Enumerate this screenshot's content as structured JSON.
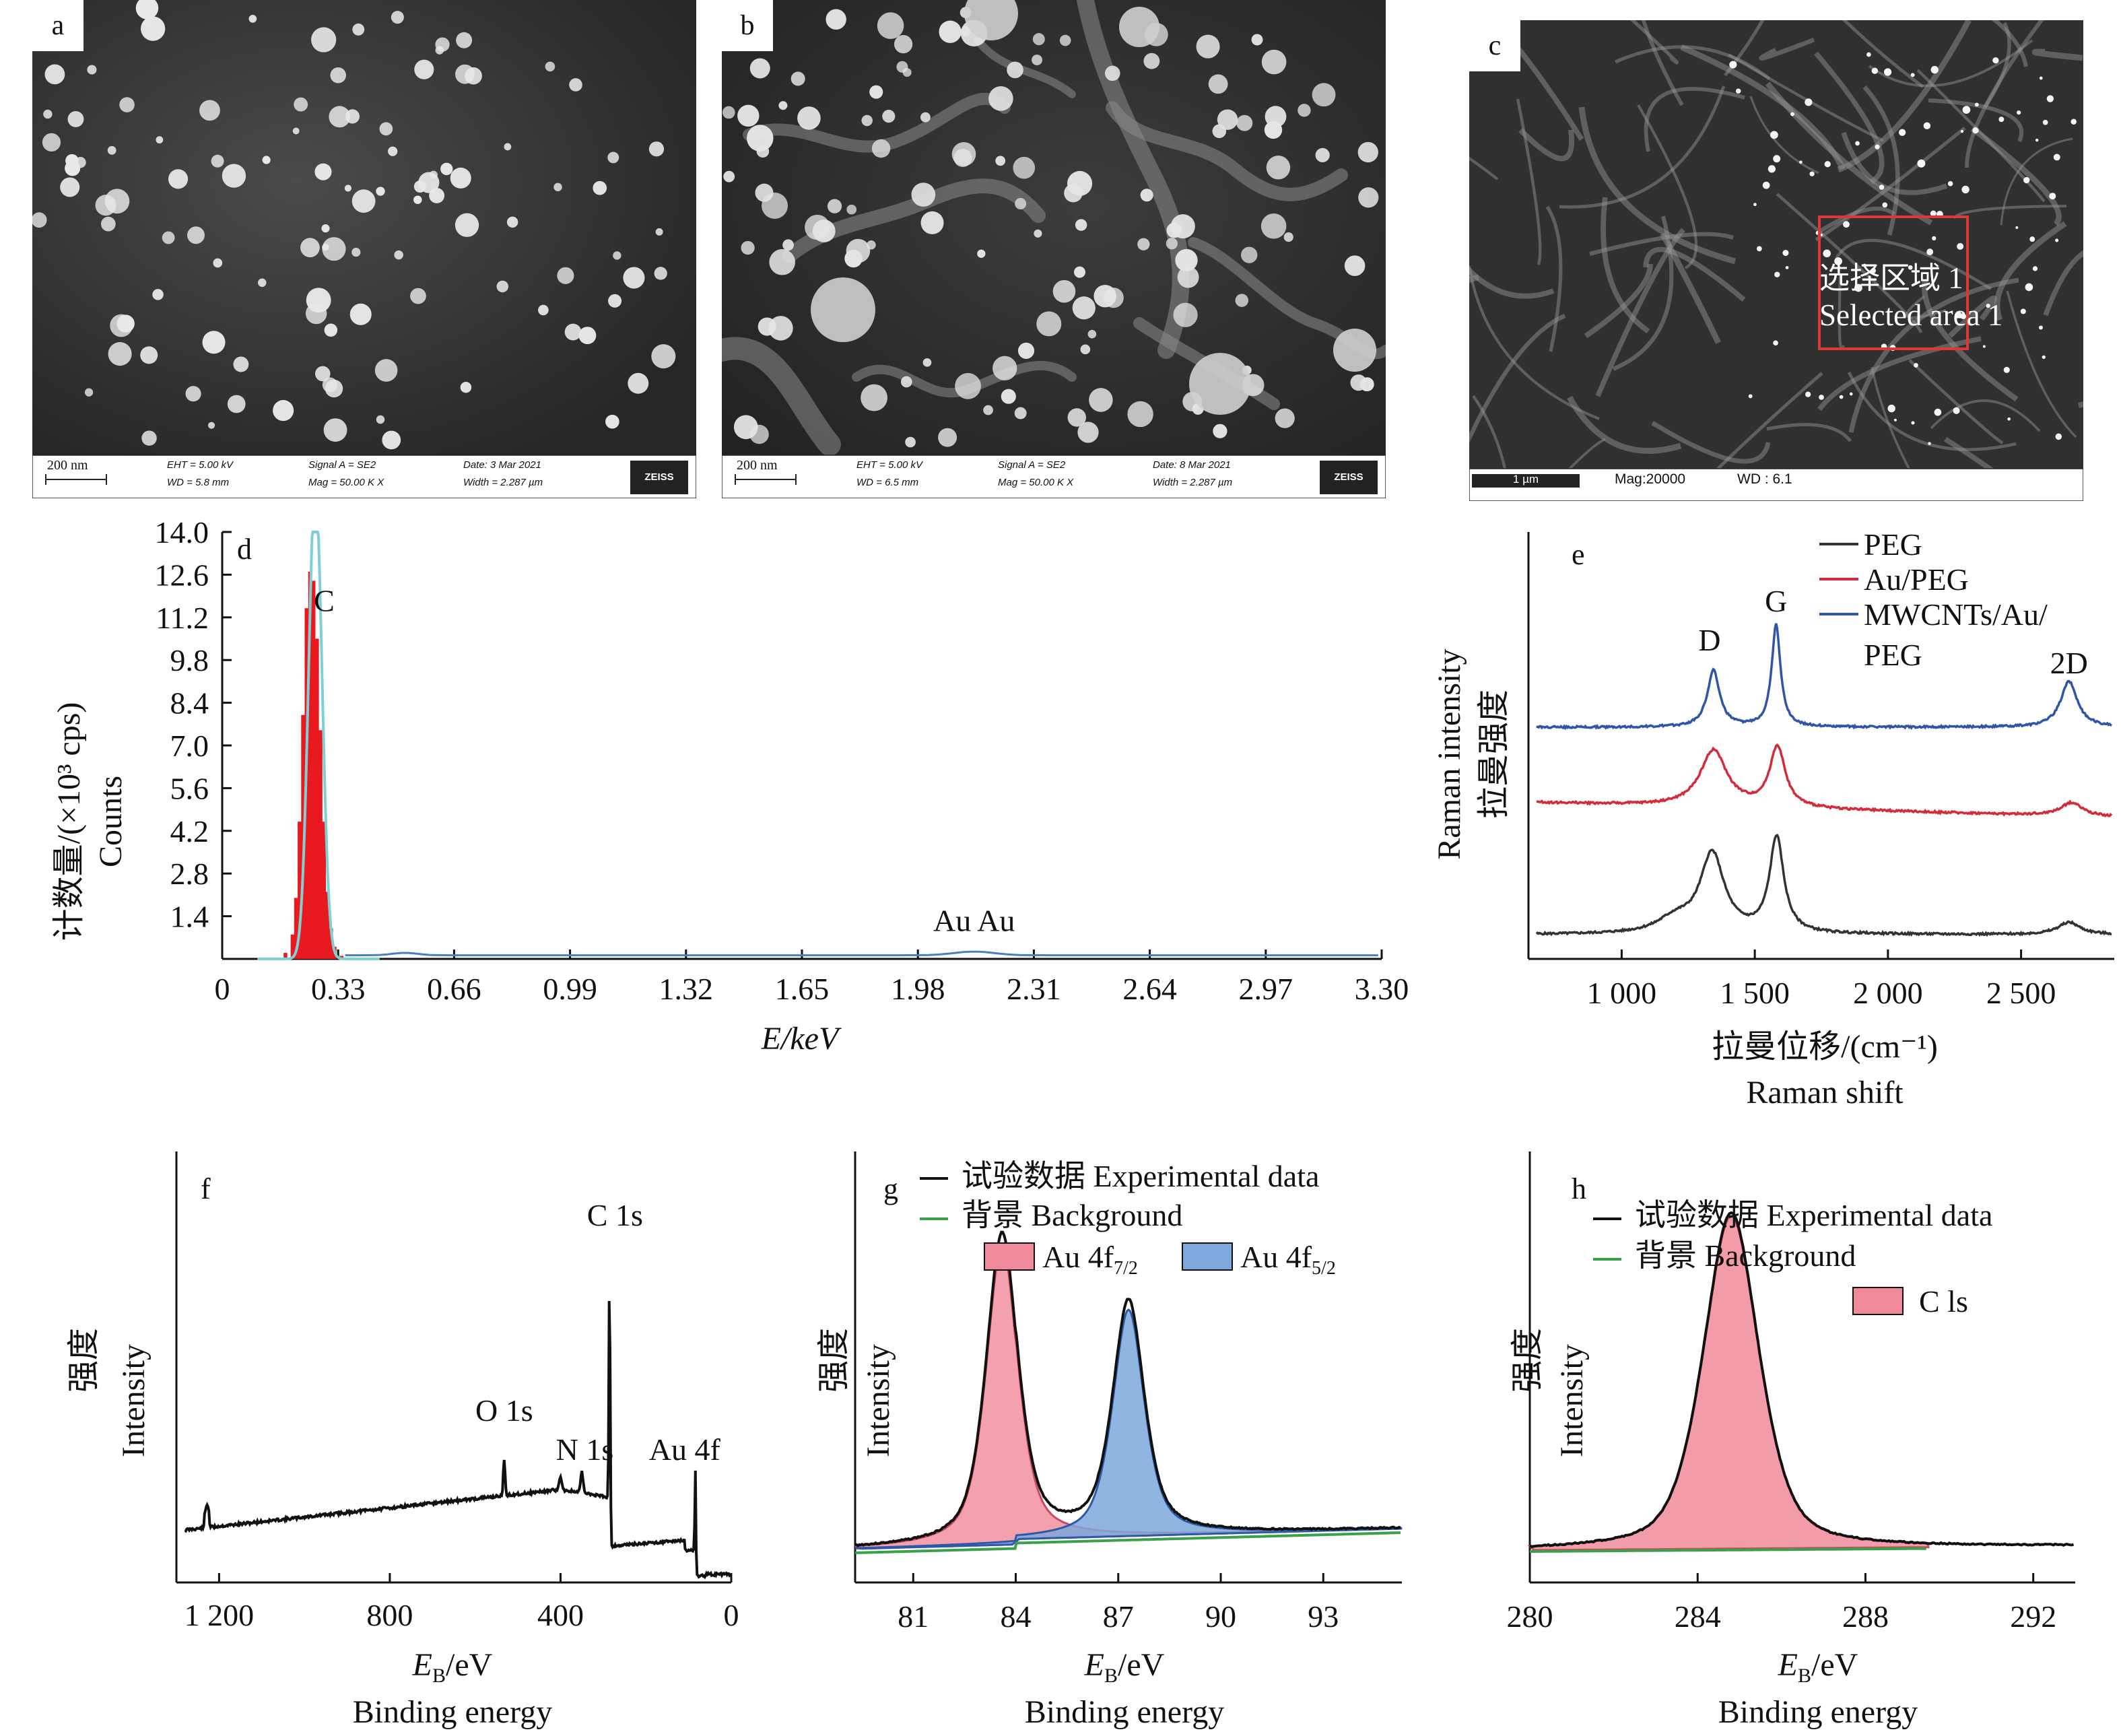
{
  "panels": {
    "a": {
      "letter": "a",
      "scalebar": "200 nm",
      "eht": "EHT = 5.00 kV",
      "wd": "WD = 5.8 mm",
      "signal": "Signal A = SE2",
      "mag": "Mag = 50.00 K X",
      "date": "Date: 3 Mar 2021",
      "width": "Width = 2.287 µm",
      "brand": "ZEISS"
    },
    "b": {
      "letter": "b",
      "scalebar": "200 nm",
      "eht": "EHT = 5.00 kV",
      "wd": "WD = 6.5 mm",
      "signal": "Signal A = SE2",
      "mag": "Mag = 50.00 K X",
      "date": "Date: 8 Mar 2021",
      "width": "Width = 2.287 µm",
      "brand": "ZEISS"
    },
    "c": {
      "letter": "c",
      "scalebar": "1 µm",
      "mag": "Mag:20000",
      "wd": "WD : 6.1",
      "selected_cn": "选择区域 1",
      "selected_en": "Selected area 1"
    }
  },
  "chart_data": [
    {
      "panel": "d",
      "type": "bar",
      "xlabel": "E/keV",
      "ylabel_cn": "计数量/(×10³ cps)",
      "ylabel_en": "Counts",
      "xlim": [
        0,
        3.3
      ],
      "ylim": [
        0,
        14.0
      ],
      "xticks": [
        "0",
        "0.33",
        "0.66",
        "0.99",
        "1.32",
        "1.65",
        "1.98",
        "2.31",
        "2.64",
        "2.97",
        "3.30"
      ],
      "yticks": [
        "1.4",
        "2.8",
        "4.2",
        "5.6",
        "7.0",
        "8.4",
        "9.8",
        "11.2",
        "12.6",
        "14.0"
      ],
      "annotations": [
        {
          "text": "C",
          "x": 0.28,
          "y": 11.4
        },
        {
          "text": "Au Au",
          "x": 2.14,
          "y": 0.7
        }
      ],
      "colors": {
        "bars": "#e8191f",
        "fit": "#7fcfd6"
      },
      "values_x": [
        0.18,
        0.2,
        0.21,
        0.22,
        0.23,
        0.24,
        0.25,
        0.26,
        0.27,
        0.28,
        0.29,
        0.3,
        0.31,
        0.32,
        0.34
      ],
      "values_y": [
        0.2,
        0.8,
        2.0,
        4.5,
        8.0,
        11.5,
        12.7,
        12.4,
        10.5,
        7.5,
        4.5,
        2.2,
        1.0,
        0.4,
        0.1
      ]
    },
    {
      "panel": "e",
      "type": "line",
      "xlabel_cn": "拉曼位移/(cm⁻¹)",
      "xlabel_en": "Raman shift",
      "ylabel_cn": "拉曼强度",
      "ylabel_en": "Raman intensity",
      "xlim": [
        650,
        2850
      ],
      "xticks": [
        {
          "label": "1 000",
          "v": 1000
        },
        {
          "label": "1 500",
          "v": 1500
        },
        {
          "label": "2 000",
          "v": 2000
        },
        {
          "label": "2 500",
          "v": 2500
        }
      ],
      "peak_labels": [
        {
          "text": "D",
          "x": 1330
        },
        {
          "text": "G",
          "x": 1580
        },
        {
          "text": "2D",
          "x": 2680
        }
      ],
      "series": [
        {
          "name": "PEG",
          "color": "#333333"
        },
        {
          "name": "Au/PEG",
          "color": "#d42a3a"
        },
        {
          "name": "MWCNTs/Au/\nPEG",
          "color": "#3055a8"
        }
      ]
    },
    {
      "panel": "f",
      "type": "line",
      "xlabel": "E_B/eV",
      "xlabel_en": "Binding energy",
      "ylabel_cn": "强度",
      "ylabel_en": "Intensity",
      "xlim": [
        1300,
        0
      ],
      "xticks": [
        {
          "label": "1 200",
          "v": 1200
        },
        {
          "label": "800",
          "v": 800
        },
        {
          "label": "400",
          "v": 400
        },
        {
          "label": "0",
          "v": 0
        }
      ],
      "peak_labels": [
        {
          "text": "C 1s",
          "x": 285
        },
        {
          "text": "O 1s",
          "x": 532
        },
        {
          "text": "N 1s",
          "x": 400
        },
        {
          "text": "Au 4f",
          "x": 84
        }
      ],
      "color": "#111111"
    },
    {
      "panel": "g",
      "type": "area",
      "xlabel": "E_B/eV",
      "xlabel_en": "Binding energy",
      "ylabel_cn": "强度",
      "ylabel_en": "Intensity",
      "xlim": [
        79.3,
        95.3
      ],
      "xticks": [
        "81",
        "84",
        "87",
        "90",
        "93"
      ],
      "legend": {
        "experimental": "试验数据 Experimental data",
        "background": "背景 Background",
        "fit1_base": "Au 4f",
        "fit1_sub": "7/2",
        "fit2_base": "Au 4f",
        "fit2_sub": "5/2"
      },
      "peaks": [
        {
          "center": 83.6,
          "height": 0.93
        },
        {
          "center": 87.3,
          "height": 0.7
        }
      ],
      "colors": {
        "fit1": "#f08a9a",
        "fit2": "#7ea8dc",
        "background": "#3aa04a"
      }
    },
    {
      "panel": "h",
      "type": "area",
      "xlabel": "E_B/eV",
      "xlabel_en": "Binding energy",
      "ylabel_cn": "强度",
      "ylabel_en": "Intensity",
      "xlim": [
        280,
        293
      ],
      "xticks": [
        "280",
        "284",
        "288",
        "292"
      ],
      "legend": {
        "experimental": "试验数据 Experimental data",
        "background": "背景 Background",
        "fit": "C ls"
      },
      "peaks": [
        {
          "center": 284.8,
          "height": 0.95
        }
      ],
      "colors": {
        "fit": "#f08a9a",
        "background": "#3aa04a"
      }
    }
  ]
}
